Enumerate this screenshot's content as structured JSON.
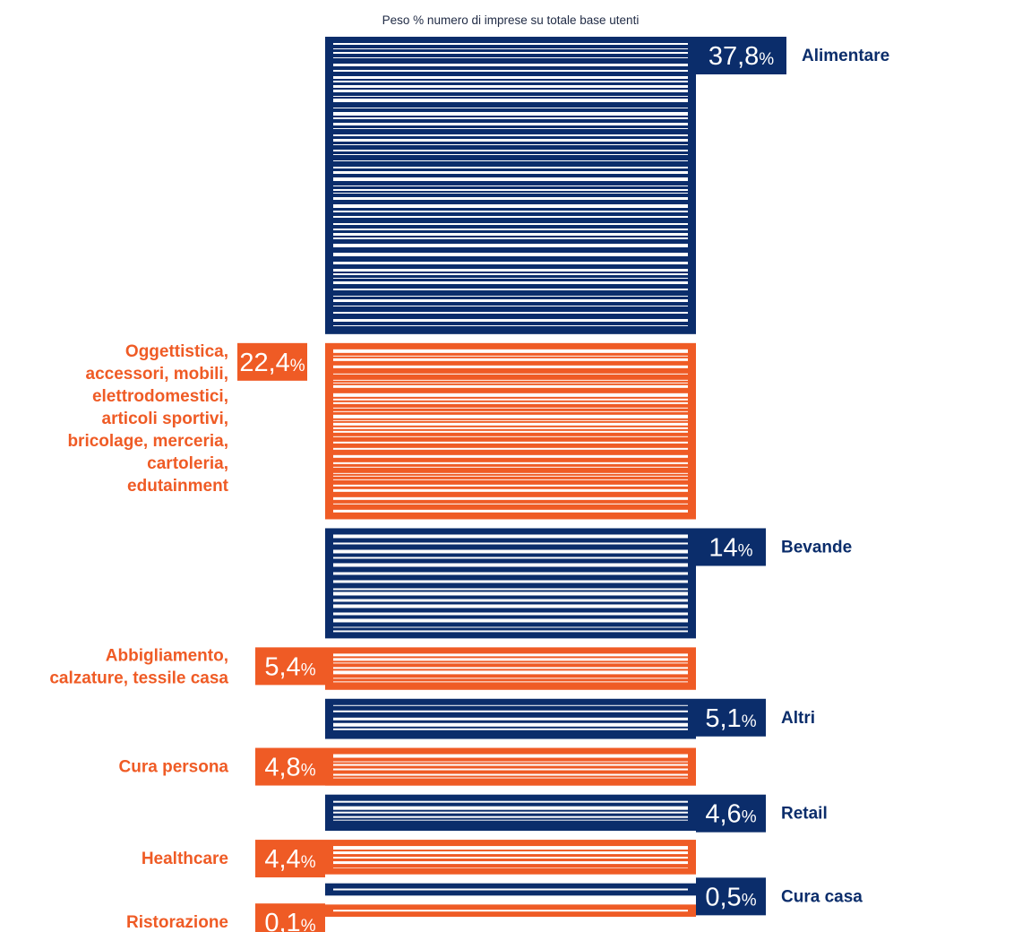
{
  "chart_data": {
    "type": "bar",
    "orientation": "vertical-stacked-blocks",
    "title": "Peso % numero di imprese su totale base utenti",
    "unit_symbol": "%",
    "colors": {
      "navy": "#0b2d6b",
      "orange": "#ef5b25",
      "stripe": "#ffffff"
    },
    "series": [
      {
        "name": "Alimentare",
        "label_lines": [
          "Alimentare"
        ],
        "value": 37.8,
        "value_text": "37,8",
        "color": "navy",
        "label_side": "right"
      },
      {
        "name": "Oggettistica, accessori, mobili, elettrodomestici, articoli sportivi, bricolage, merceria, cartoleria, edutainment",
        "label_lines": [
          "Oggettistica,",
          "accessori, mobili,",
          "elettrodomestici,",
          "articoli sportivi,",
          "bricolage, merceria,",
          "cartoleria,",
          "edutainment"
        ],
        "value": 22.4,
        "value_text": "22,4",
        "color": "orange",
        "label_side": "left"
      },
      {
        "name": "Bevande",
        "label_lines": [
          "Bevande"
        ],
        "value": 14,
        "value_text": "14",
        "color": "navy",
        "label_side": "right"
      },
      {
        "name": "Abbigliamento, calzature, tessile casa",
        "label_lines": [
          "Abbigliamento,",
          "calzature, tessile casa"
        ],
        "value": 5.4,
        "value_text": "5,4",
        "color": "orange",
        "label_side": "left"
      },
      {
        "name": "Altri",
        "label_lines": [
          "Altri"
        ],
        "value": 5.1,
        "value_text": "5,1",
        "color": "navy",
        "label_side": "right"
      },
      {
        "name": "Cura persona",
        "label_lines": [
          "Cura persona"
        ],
        "value": 4.8,
        "value_text": "4,8",
        "color": "orange",
        "label_side": "left"
      },
      {
        "name": "Retail",
        "label_lines": [
          "Retail"
        ],
        "value": 4.6,
        "value_text": "4,6",
        "color": "navy",
        "label_side": "right"
      },
      {
        "name": "Healthcare",
        "label_lines": [
          "Healthcare"
        ],
        "value": 4.4,
        "value_text": "4,4",
        "color": "orange",
        "label_side": "left"
      },
      {
        "name": "Cura casa",
        "label_lines": [
          "Cura casa"
        ],
        "value": 0.5,
        "value_text": "0,5",
        "color": "navy",
        "label_side": "right"
      },
      {
        "name": "Ristorazione",
        "label_lines": [
          "Ristorazione"
        ],
        "value": 0.1,
        "value_text": "0,1",
        "color": "orange",
        "label_side": "left"
      }
    ]
  }
}
